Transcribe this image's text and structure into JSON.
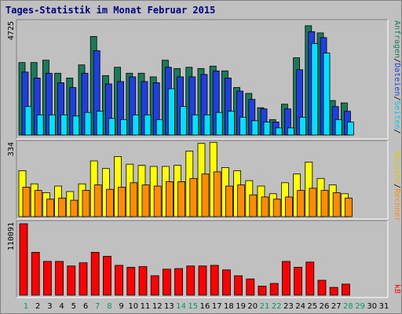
{
  "title": "Tages-Statistik im Monat Februar 2015",
  "chart_data": [
    {
      "type": "bar",
      "panel": "top",
      "ymax_label": "4725",
      "ylim": [
        0,
        4725
      ],
      "categories": [
        "1",
        "2",
        "3",
        "4",
        "5",
        "6",
        "7",
        "8",
        "9",
        "10",
        "11",
        "12",
        "13",
        "14",
        "15",
        "16",
        "17",
        "18",
        "19",
        "20",
        "21",
        "22",
        "23",
        "24",
        "25",
        "26",
        "27",
        "28",
        "29",
        "30",
        "31"
      ],
      "series": [
        {
          "name": "Anfragen",
          "color": "#1a7a5a",
          "values": [
            3050,
            3050,
            3150,
            2600,
            2400,
            2950,
            4150,
            2500,
            2850,
            2600,
            2600,
            2450,
            3150,
            2800,
            2850,
            2800,
            2900,
            2700,
            2000,
            1750,
            1150,
            650,
            1300,
            3250,
            4600,
            4300,
            1450,
            1350,
            0,
            0,
            0
          ]
        },
        {
          "name": "Dateien",
          "color": "#1f3fe0",
          "values": [
            2650,
            2400,
            2600,
            2200,
            2000,
            2600,
            3550,
            2150,
            2250,
            2450,
            2250,
            2200,
            2850,
            2450,
            2450,
            2550,
            2700,
            2400,
            1850,
            1500,
            1100,
            550,
            1100,
            2750,
            4350,
            4100,
            1200,
            1000,
            0,
            0,
            0
          ]
        },
        {
          "name": "Seiten",
          "color": "#00e0ff",
          "values": [
            1200,
            850,
            850,
            850,
            800,
            950,
            1000,
            700,
            650,
            850,
            850,
            650,
            1950,
            1200,
            850,
            850,
            950,
            1000,
            750,
            600,
            550,
            300,
            300,
            750,
            3850,
            3450,
            650,
            550,
            0,
            0,
            0
          ]
        }
      ]
    },
    {
      "type": "bar",
      "panel": "middle",
      "ymax_label": "334",
      "ylim": [
        0,
        334
      ],
      "categories": [
        "1",
        "2",
        "3",
        "4",
        "5",
        "6",
        "7",
        "8",
        "9",
        "10",
        "11",
        "12",
        "13",
        "14",
        "15",
        "16",
        "17",
        "18",
        "19",
        "20",
        "21",
        "22",
        "23",
        "24",
        "25",
        "26",
        "27",
        "28",
        "29",
        "30",
        "31"
      ],
      "series": [
        {
          "name": "Besuche",
          "color": "#ffff00",
          "values": [
            210,
            150,
            110,
            140,
            115,
            150,
            255,
            220,
            275,
            240,
            235,
            230,
            230,
            235,
            300,
            335,
            340,
            225,
            210,
            165,
            140,
            105,
            155,
            195,
            250,
            175,
            145,
            105,
            0,
            0,
            0
          ]
        },
        {
          "name": "Rechner",
          "color": "#ff8c00",
          "values": [
            135,
            120,
            80,
            85,
            75,
            120,
            145,
            125,
            135,
            155,
            145,
            140,
            160,
            160,
            175,
            195,
            205,
            140,
            145,
            100,
            90,
            80,
            90,
            120,
            130,
            120,
            110,
            85,
            0,
            0,
            0
          ]
        }
      ]
    },
    {
      "type": "bar",
      "panel": "bottom",
      "ymax_label": "110091",
      "ylim": [
        0,
        110091
      ],
      "categories": [
        "1",
        "2",
        "3",
        "4",
        "5",
        "6",
        "7",
        "8",
        "9",
        "10",
        "11",
        "12",
        "13",
        "14",
        "15",
        "16",
        "17",
        "18",
        "19",
        "20",
        "21",
        "22",
        "23",
        "24",
        "25",
        "26",
        "27",
        "28",
        "29",
        "30",
        "31"
      ],
      "series": [
        {
          "name": "kB",
          "color": "#ff0000",
          "values": [
            110091,
            66000,
            52000,
            52000,
            45000,
            50000,
            66000,
            60000,
            46000,
            43000,
            44000,
            30000,
            40000,
            41000,
            45000,
            45000,
            46000,
            39000,
            30000,
            25000,
            14000,
            18000,
            52000,
            43000,
            51000,
            23000,
            12000,
            17000,
            0,
            0,
            0
          ]
        }
      ]
    }
  ],
  "x_axis": {
    "labels": [
      "1",
      "2",
      "3",
      "4",
      "5",
      "6",
      "7",
      "8",
      "9",
      "10",
      "11",
      "12",
      "13",
      "14",
      "15",
      "16",
      "17",
      "18",
      "19",
      "20",
      "21",
      "22",
      "23",
      "24",
      "25",
      "26",
      "27",
      "28",
      "29",
      "30",
      "31"
    ],
    "weekend_color": "#009966",
    "weekday_color": "#000000",
    "weekend_days": [
      "1",
      "7",
      "8",
      "14",
      "15",
      "21",
      "22",
      "28",
      "29"
    ]
  },
  "right_labels": {
    "top": [
      {
        "text": "Anfragen",
        "color": "#1a7a5a"
      },
      {
        "text": "/",
        "color": "#000000"
      },
      {
        "text": "Dateien",
        "color": "#1f3fe0"
      },
      {
        "text": "/",
        "color": "#000000"
      },
      {
        "text": "Seiten",
        "color": "#00c8e8"
      },
      {
        "text": "/",
        "color": "#000000"
      }
    ],
    "middle": [
      {
        "text": "Besuche",
        "color": "#d8c800"
      },
      {
        "text": "/",
        "color": "#000000"
      },
      {
        "text": "Rechner",
        "color": "#ff8c00"
      }
    ],
    "bottom": [
      {
        "text": "kB",
        "color": "#ff0000"
      }
    ]
  }
}
